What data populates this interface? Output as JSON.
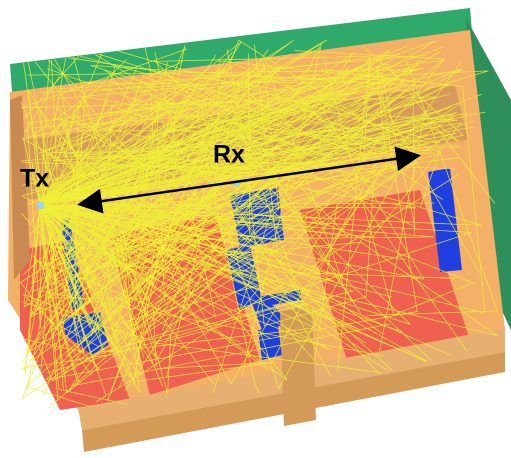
{
  "labels": {
    "tx": "Tx",
    "rx": "Rx"
  }
}
